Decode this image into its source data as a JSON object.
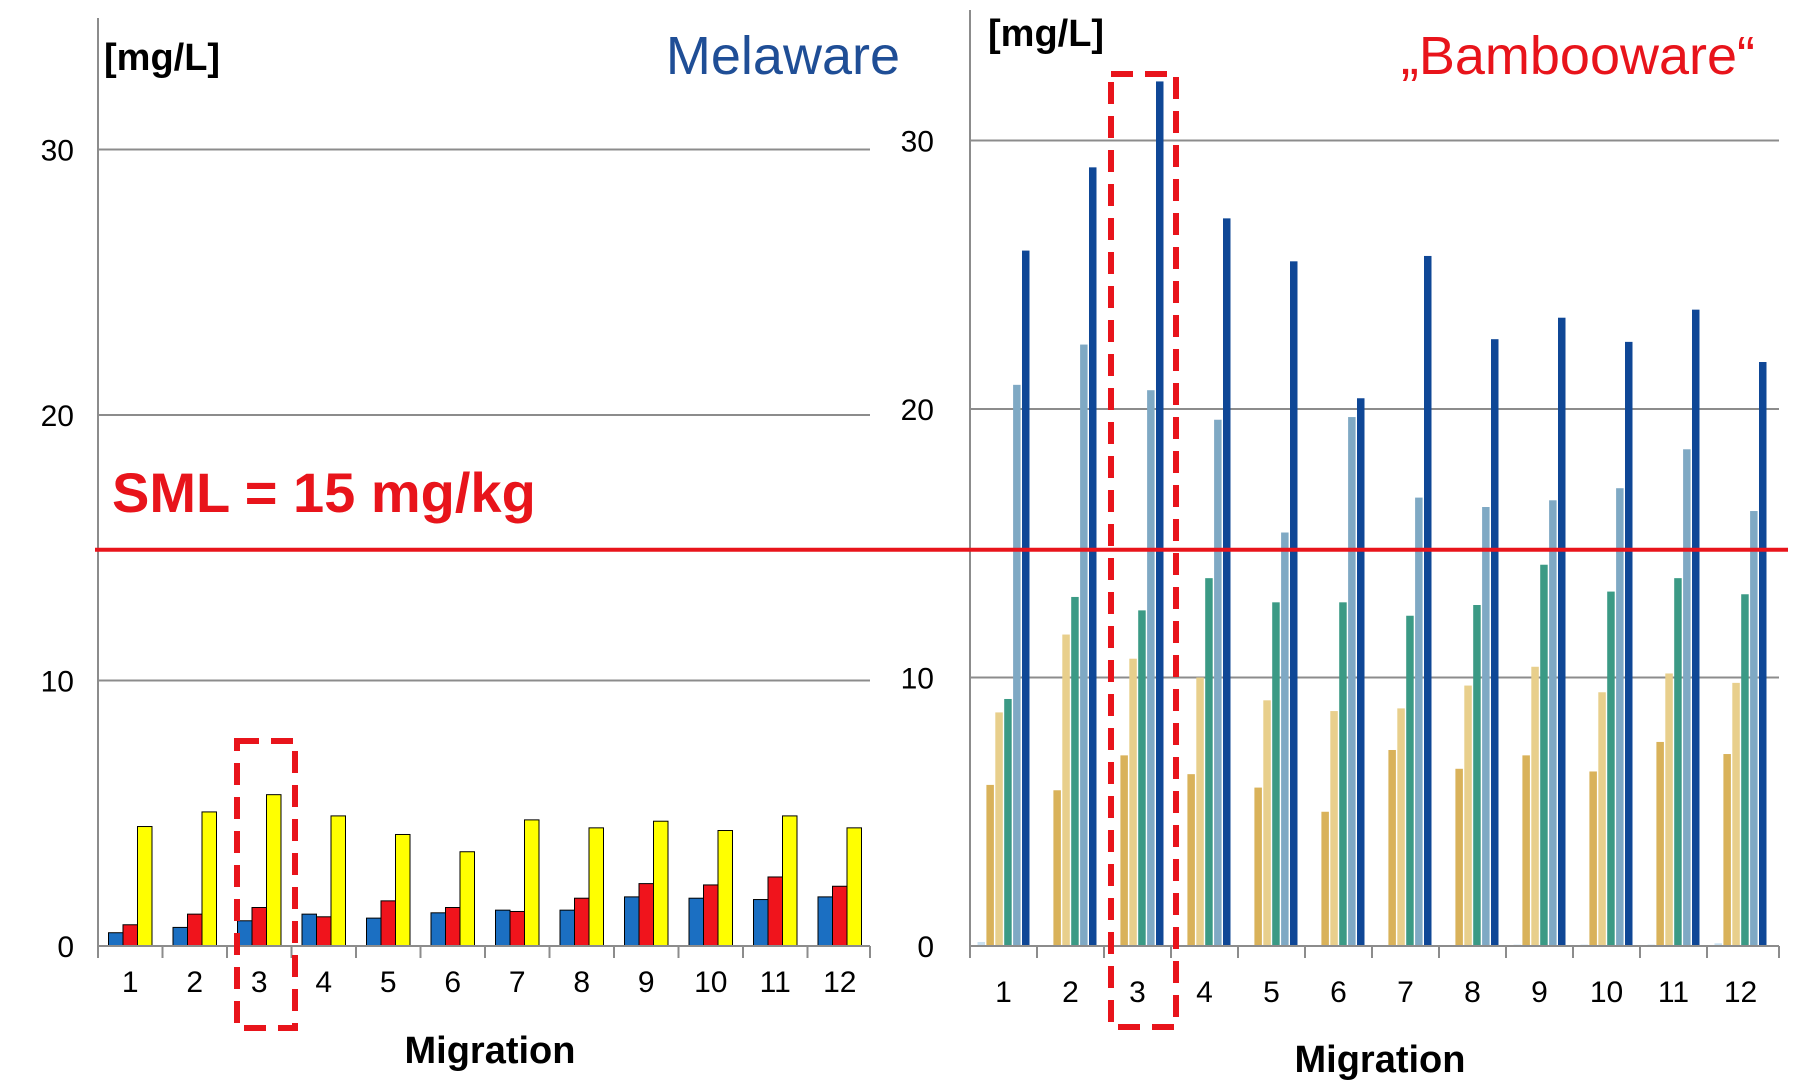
{
  "chart_data": [
    {
      "type": "bar",
      "title": "Melaware",
      "title_color": "#1F4E96",
      "ylabel": "[mg/L]",
      "xlabel": "Migration",
      "ylim": [
        0,
        32
      ],
      "yticks": [
        "0",
        "10",
        "20",
        "30"
      ],
      "grid": "horizontal",
      "categories": [
        "1",
        "2",
        "3",
        "4",
        "5",
        "6",
        "7",
        "8",
        "9",
        "10",
        "11",
        "12"
      ],
      "series": [
        {
          "color": "#1B6FC2",
          "values": [
            0.5,
            0.7,
            0.95,
            1.2,
            1.05,
            1.25,
            1.35,
            1.35,
            1.85,
            1.8,
            1.75,
            1.85
          ]
        },
        {
          "color": "#F0141C",
          "values": [
            0.8,
            1.2,
            1.45,
            1.1,
            1.7,
            1.45,
            1.3,
            1.8,
            2.35,
            2.3,
            2.6,
            2.25
          ]
        },
        {
          "color": "#FFFF00",
          "values": [
            4.5,
            5.05,
            5.7,
            4.9,
            4.2,
            3.55,
            4.75,
            4.45,
            4.7,
            4.35,
            4.9,
            4.45
          ]
        }
      ],
      "highlight_category": "3",
      "annotation": "SML = 15 mg/kg",
      "sml_value": 15
    },
    {
      "type": "bar",
      "title": "„Bambooware“",
      "title_color": "#E8141B",
      "ylabel": "[mg/L]",
      "xlabel": "Migration",
      "ylim": [
        0,
        32
      ],
      "yticks": [
        "0",
        "10",
        "20",
        "30"
      ],
      "grid": "horizontal",
      "categories": [
        "1",
        "2",
        "3",
        "4",
        "5",
        "6",
        "7",
        "8",
        "9",
        "10",
        "11",
        "12"
      ],
      "series": [
        {
          "color": "#C9E0F0",
          "values": [
            0.15,
            0.0,
            0.0,
            0.0,
            0.0,
            0.0,
            0.0,
            0.0,
            0.05,
            0.05,
            0.05,
            0.1
          ]
        },
        {
          "color": "#D9B25A",
          "values": [
            6.0,
            5.8,
            7.1,
            6.4,
            5.9,
            5.0,
            7.3,
            6.6,
            7.1,
            6.5,
            7.6,
            7.15
          ]
        },
        {
          "color": "#E8CF8C",
          "values": [
            8.7,
            11.6,
            10.7,
            10.0,
            9.15,
            8.75,
            8.85,
            9.7,
            10.4,
            9.45,
            10.15,
            9.8
          ]
        },
        {
          "color": "#3B9A85",
          "values": [
            9.2,
            13.0,
            12.5,
            13.7,
            12.8,
            12.8,
            12.3,
            12.7,
            14.2,
            13.2,
            13.7,
            13.1
          ]
        },
        {
          "color": "#7FA9C4",
          "values": [
            20.9,
            22.4,
            20.7,
            19.6,
            15.4,
            19.7,
            16.7,
            16.35,
            16.6,
            17.05,
            18.5,
            16.2
          ]
        },
        {
          "color": "#0F4796",
          "values": [
            25.9,
            29.0,
            32.2,
            27.1,
            25.5,
            20.4,
            25.7,
            22.6,
            23.4,
            22.5,
            23.7,
            21.75
          ]
        }
      ],
      "highlight_category": "3"
    }
  ]
}
